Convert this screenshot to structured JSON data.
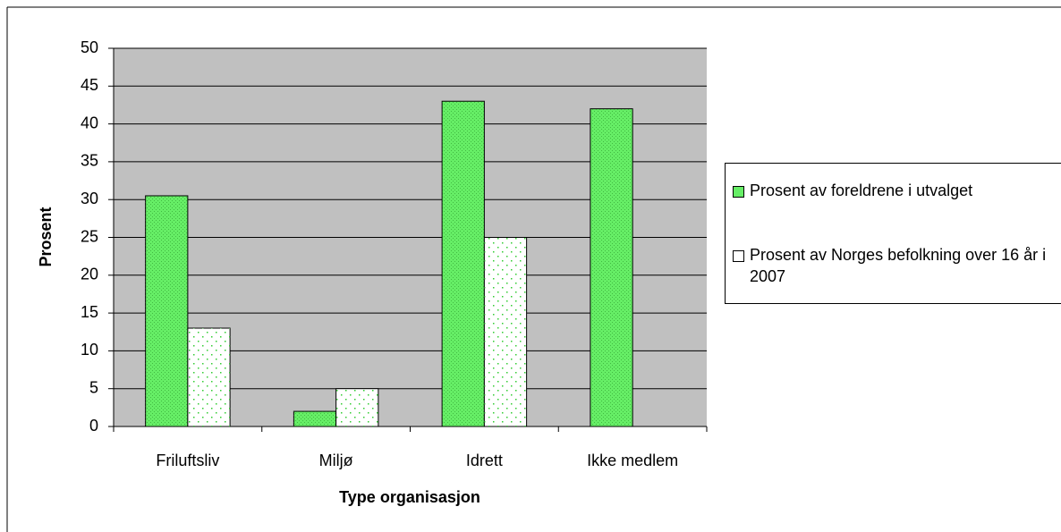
{
  "chart_data": {
    "type": "bar",
    "x_label": "Type organisasjon",
    "y_label": "Prosent",
    "categories": [
      "Friluftsliv",
      "Miljø",
      "Idrett",
      "Ikke medlem"
    ],
    "series": [
      {
        "name": "Prosent av foreldrene i utvalget",
        "color": "#66ee66",
        "values": [
          30.5,
          2,
          43,
          42
        ]
      },
      {
        "name": "Prosent av Norges befolkning over 16 år i 2007",
        "color": "#ffffff",
        "values": [
          13,
          5,
          25,
          null
        ]
      }
    ],
    "ylim": [
      0,
      50
    ],
    "yticks": [
      0,
      5,
      10,
      15,
      20,
      25,
      30,
      35,
      40,
      45,
      50
    ],
    "grid": true,
    "legend": "right"
  }
}
